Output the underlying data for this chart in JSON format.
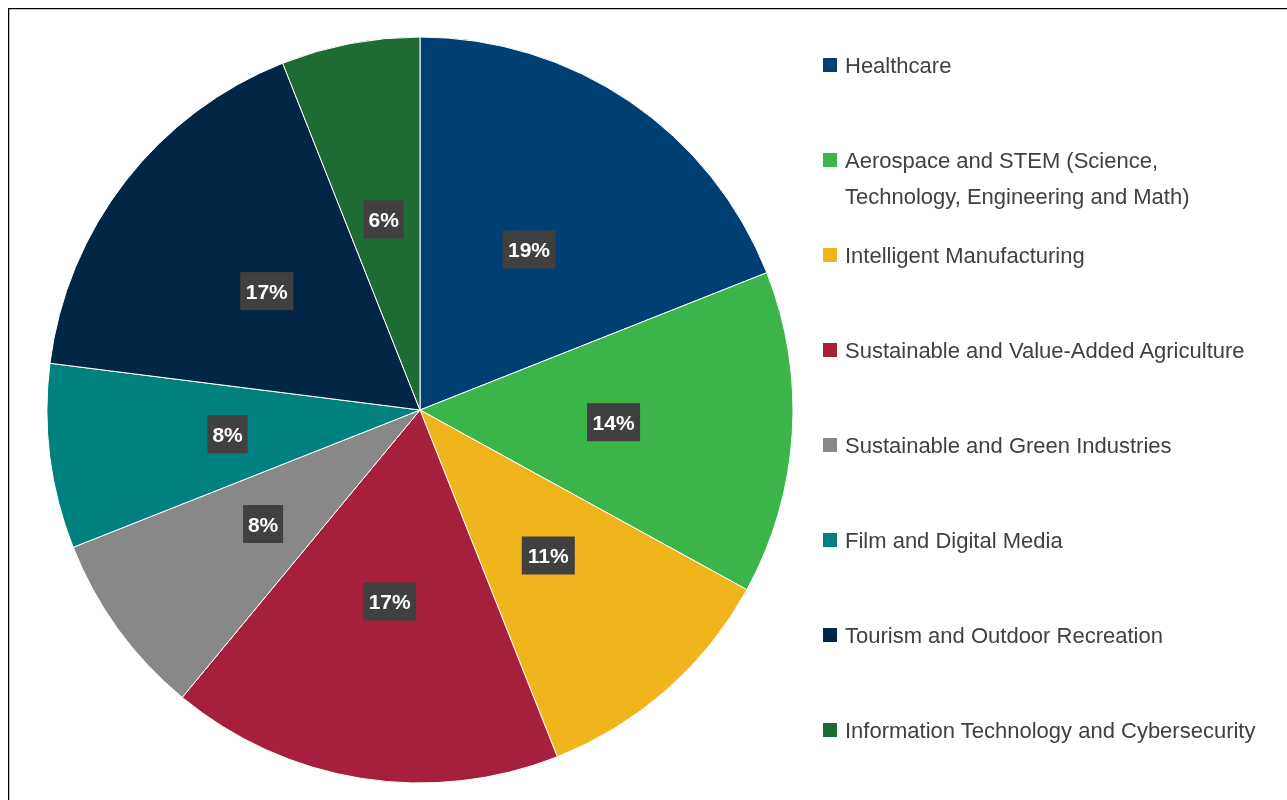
{
  "chart_data": {
    "type": "pie",
    "categories": [
      "Healthcare",
      "Aerospace and STEM (Science, Technology, Engineering and Math)",
      "Intelligent Manufacturing",
      "Sustainable and Value-Added Agriculture",
      "Sustainable and Green Industries",
      "Film and Digital Media",
      "Tourism and Outdoor Recreation",
      "Information Technology and Cybersecurity"
    ],
    "values": [
      19,
      14,
      11,
      17,
      8,
      8,
      17,
      6
    ],
    "value_labels": [
      "19%",
      "14%",
      "11%",
      "17%",
      "8%",
      "8%",
      "17%",
      "6%"
    ],
    "colors": [
      "#003f72",
      "#3bb54a",
      "#f0b41c",
      "#a6203d",
      "#888888",
      "#00807f",
      "#022645",
      "#1f6b35"
    ],
    "legend": "right"
  }
}
